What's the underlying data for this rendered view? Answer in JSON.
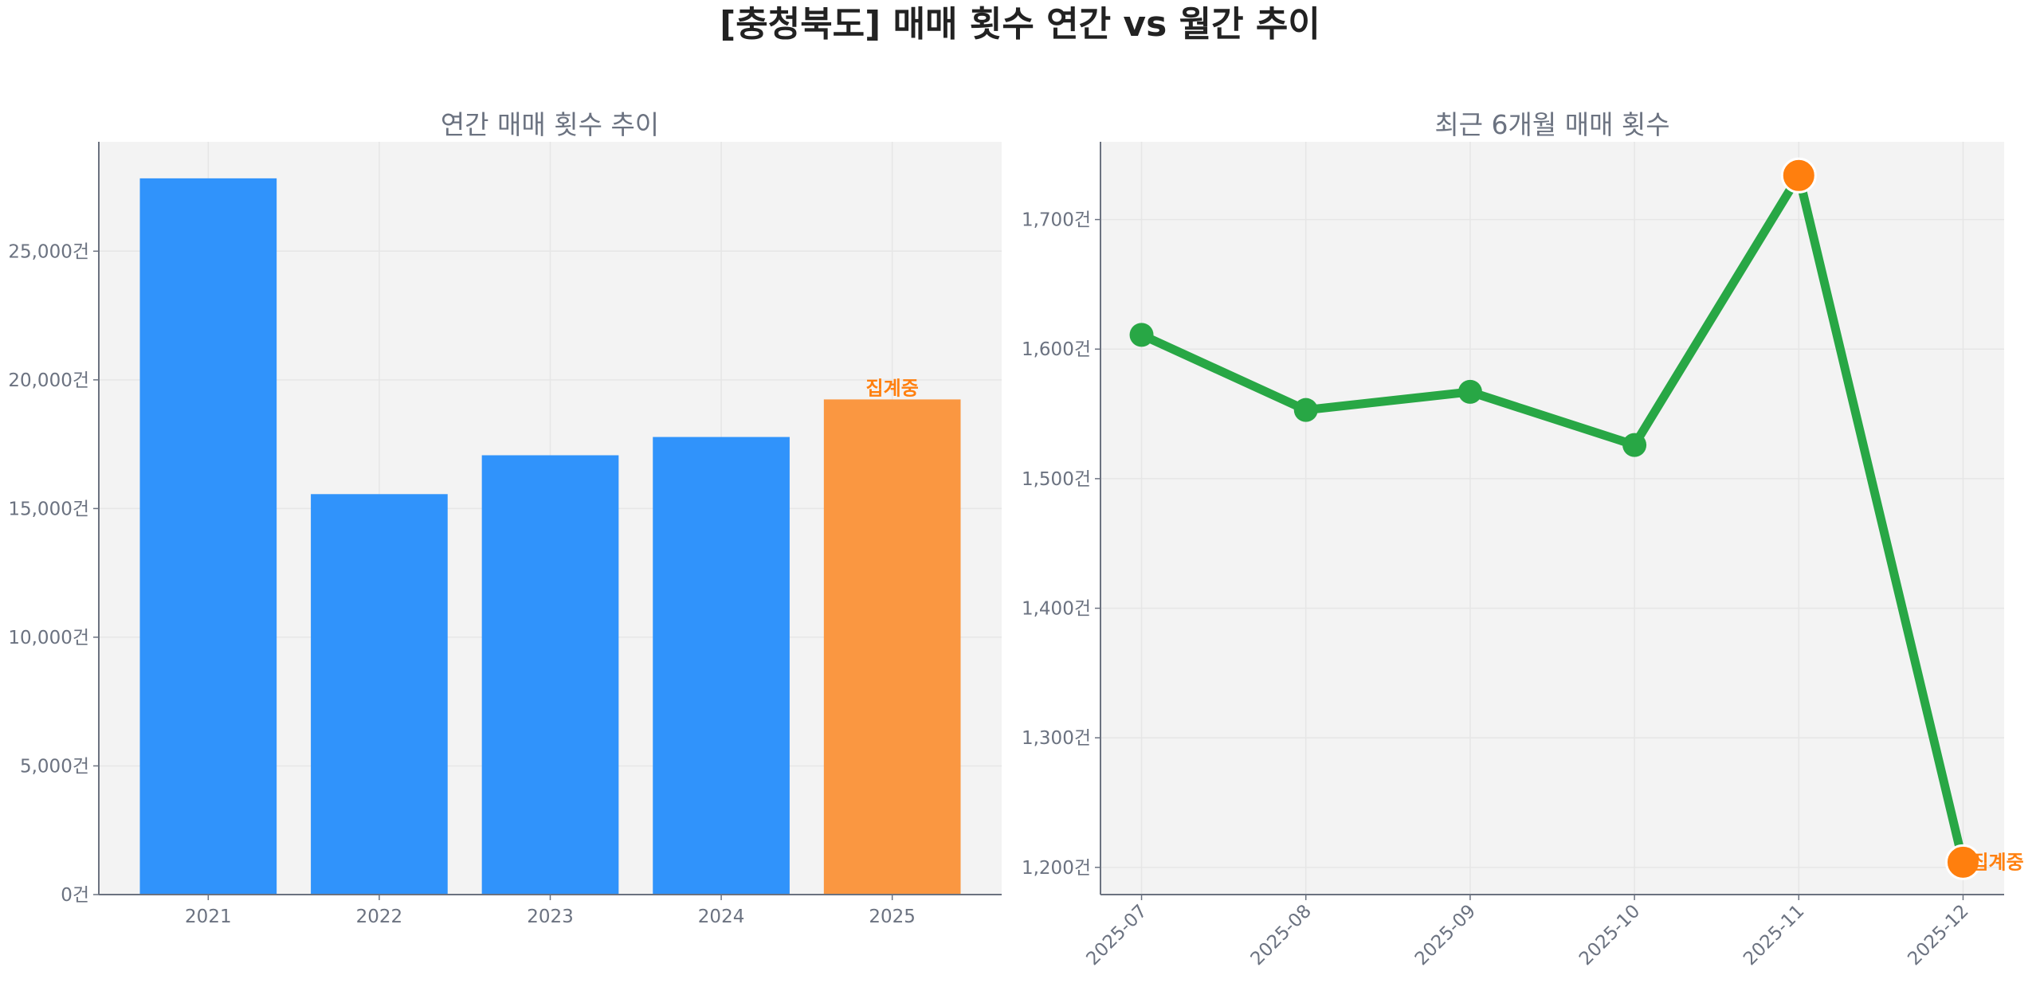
{
  "title": "[충청북도] 매매 횟수 연간 vs 월간 추이",
  "chart_data": [
    {
      "type": "bar",
      "title": "연간 매매 횟수 추이",
      "categories": [
        "2021",
        "2022",
        "2023",
        "2024",
        "2025"
      ],
      "values": [
        27830,
        15560,
        17070,
        17780,
        19240
      ],
      "ylim": [
        0,
        29250
      ],
      "yticks": [
        0,
        5000,
        10000,
        15000,
        20000,
        25000
      ],
      "ytick_labels": [
        "0건",
        "5,000건",
        "10,000건",
        "15,000건",
        "20,000건",
        "25,000건"
      ],
      "grid": true,
      "colors": {
        "bar": "#3093fb",
        "partial": "#fa9741"
      },
      "annotation": {
        "category": "2025",
        "text": "집계중"
      }
    },
    {
      "type": "line",
      "title": "최근 6개월 매매 횟수",
      "categories": [
        "2025-07",
        "2025-08",
        "2025-09",
        "2025-10",
        "2025-11",
        "2025-12"
      ],
      "values": [
        1611,
        1553,
        1567,
        1526,
        1734,
        1204
      ],
      "ylim": [
        1179,
        1760
      ],
      "yticks": [
        1200,
        1300,
        1400,
        1500,
        1600,
        1700
      ],
      "ytick_labels": [
        "1,200건",
        "1,300건",
        "1,400건",
        "1,500건",
        "1,600건",
        "1,700건"
      ],
      "grid": true,
      "colors": {
        "line": "#28a745",
        "highlight": "#ff7f0e"
      },
      "highlighted_points": [
        "2025-11",
        "2025-12"
      ],
      "annotation": {
        "category": "2025-12",
        "text": "집계중"
      }
    }
  ]
}
